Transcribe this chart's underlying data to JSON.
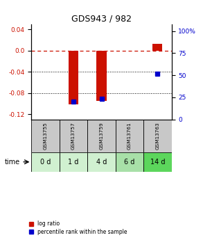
{
  "title": "GDS943 / 982",
  "samples": [
    "GSM13755",
    "GSM13757",
    "GSM13759",
    "GSM13761",
    "GSM13763"
  ],
  "time_labels": [
    "0 d",
    "1 d",
    "4 d",
    "6 d",
    "14 d"
  ],
  "log_ratios": [
    0.0,
    -0.102,
    -0.095,
    0.0,
    0.012
  ],
  "percentile_ranks": [
    null,
    20,
    23,
    null,
    52
  ],
  "ylim_left": [
    -0.13,
    0.05
  ],
  "ylim_right": [
    0,
    108.0
  ],
  "yticks_left": [
    0.04,
    0.0,
    -0.04,
    -0.08,
    -0.12
  ],
  "yticks_right": [
    100,
    75,
    50,
    25,
    0
  ],
  "bar_color": "#cc1100",
  "percentile_color": "#0000cc",
  "zero_line_color": "#cc1100",
  "grid_line_color": "#000000",
  "sample_box_color": "#c8c8c8",
  "time_box_colors": [
    "#d0f0d0",
    "#d0f0d0",
    "#d0f0d0",
    "#a8e0a8",
    "#5cd65c"
  ],
  "bar_width": 0.35,
  "percentile_marker_size": 4,
  "title_fontsize": 9,
  "tick_fontsize": 6.5,
  "label_fontsize": 6.5
}
